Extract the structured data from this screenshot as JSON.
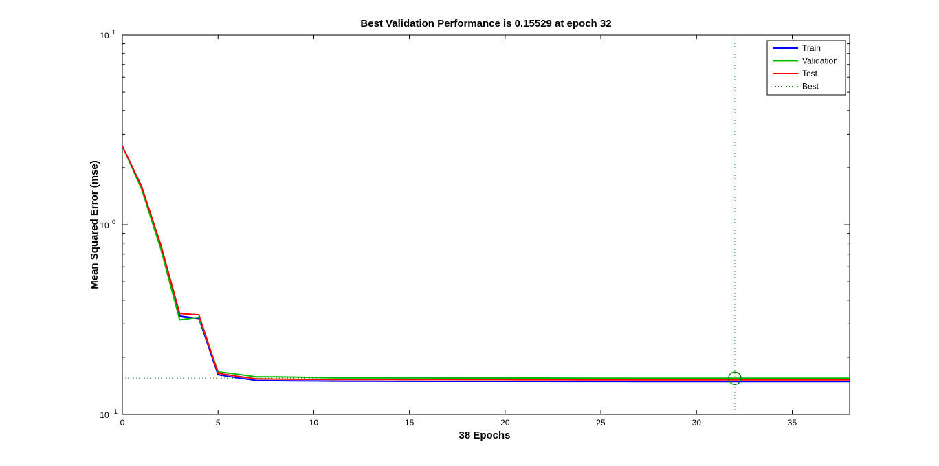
{
  "chart_data": {
    "type": "line",
    "title": "Best Validation Performance is 0.15529 at epoch 32",
    "xlabel": "38 Epochs",
    "ylabel": "Mean Squared Error  (mse)",
    "xlim": [
      0,
      38
    ],
    "ylim": [
      0.1,
      10
    ],
    "yscale": "log",
    "x_ticks": [
      0,
      5,
      10,
      15,
      20,
      25,
      30,
      35
    ],
    "x_tick_labels": [
      "0",
      "5",
      "10",
      "15",
      "20",
      "25",
      "30",
      "35"
    ],
    "y_ticks": [
      0.1,
      1,
      10
    ],
    "y_tick_labels": [
      {
        "base": "10",
        "exp": "-1"
      },
      {
        "base": "10",
        "exp": "0"
      },
      {
        "base": "10",
        "exp": "1"
      }
    ],
    "grid": false,
    "legend_position": "top-right",
    "best": {
      "epoch": 32,
      "value": 0.15529,
      "name": "Best",
      "color": "#00a000"
    },
    "series": [
      {
        "name": "Train",
        "color": "#0000ff",
        "x": [
          0,
          1,
          2,
          3,
          4,
          5,
          6,
          7,
          8,
          9,
          10,
          11,
          12,
          13,
          14,
          15,
          16,
          17,
          18,
          19,
          20,
          21,
          22,
          23,
          24,
          25,
          26,
          27,
          28,
          29,
          30,
          31,
          32,
          33,
          34,
          35,
          36,
          37,
          38
        ],
        "y": [
          2.6,
          1.6,
          0.78,
          0.33,
          0.32,
          0.162,
          0.156,
          0.151,
          0.1505,
          0.1502,
          0.15,
          0.1498,
          0.1495,
          0.1495,
          0.1494,
          0.1494,
          0.1493,
          0.1493,
          0.1493,
          0.1492,
          0.1492,
          0.1492,
          0.1492,
          0.1491,
          0.1491,
          0.1491,
          0.1491,
          0.149,
          0.149,
          0.149,
          0.149,
          0.149,
          0.149,
          0.149,
          0.149,
          0.149,
          0.149,
          0.149,
          0.149
        ]
      },
      {
        "name": "Validation",
        "color": "#00bb00",
        "x": [
          0,
          1,
          2,
          3,
          4,
          5,
          6,
          7,
          8,
          9,
          10,
          11,
          12,
          13,
          14,
          15,
          16,
          17,
          18,
          19,
          20,
          21,
          22,
          23,
          24,
          25,
          26,
          27,
          28,
          29,
          30,
          31,
          32,
          33,
          34,
          35,
          36,
          37,
          38
        ],
        "y": [
          2.6,
          1.55,
          0.75,
          0.315,
          0.325,
          0.168,
          0.163,
          0.158,
          0.1578,
          0.1575,
          0.1565,
          0.156,
          0.1558,
          0.1557,
          0.1557,
          0.1557,
          0.1557,
          0.1556,
          0.1556,
          0.1556,
          0.1556,
          0.1556,
          0.1556,
          0.1555,
          0.1555,
          0.1554,
          0.1554,
          0.1554,
          0.1553,
          0.1553,
          0.1553,
          0.1553,
          0.15529,
          0.1553,
          0.1553,
          0.1553,
          0.1553,
          0.1553,
          0.1553
        ]
      },
      {
        "name": "Test",
        "color": "#ff0000",
        "x": [
          0,
          1,
          2,
          3,
          4,
          5,
          6,
          7,
          8,
          9,
          10,
          11,
          12,
          13,
          14,
          15,
          16,
          17,
          18,
          19,
          20,
          21,
          22,
          23,
          24,
          25,
          26,
          27,
          28,
          29,
          30,
          31,
          32,
          33,
          34,
          35,
          36,
          37,
          38
        ],
        "y": [
          2.6,
          1.6,
          0.79,
          0.34,
          0.335,
          0.165,
          0.159,
          0.154,
          0.1535,
          0.1532,
          0.153,
          0.1528,
          0.1527,
          0.1526,
          0.1526,
          0.1525,
          0.1525,
          0.1525,
          0.1524,
          0.1524,
          0.1524,
          0.1523,
          0.1523,
          0.1523,
          0.1522,
          0.1522,
          0.1521,
          0.1521,
          0.1521,
          0.152,
          0.152,
          0.152,
          0.152,
          0.152,
          0.152,
          0.152,
          0.152,
          0.152,
          0.152
        ]
      }
    ]
  }
}
